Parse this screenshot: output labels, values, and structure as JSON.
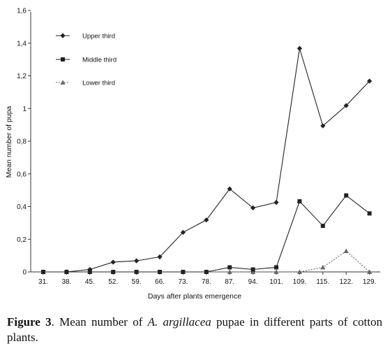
{
  "chart_data": {
    "type": "line",
    "categories": [
      "31.",
      "38.",
      "45.",
      "52.",
      "59.",
      "66.",
      "73.",
      "78.",
      "87.",
      "94.",
      "101.",
      "109.",
      "115.",
      "122.",
      "129."
    ],
    "series": [
      {
        "name": "Upper third",
        "marker": "diamond",
        "color": "#222222",
        "dashed": false,
        "values": [
          0,
          0,
          0.015,
          0.06,
          0.068,
          0.092,
          0.242,
          0.318,
          0.508,
          0.392,
          0.425,
          1.368,
          0.894,
          1.018,
          1.168
        ]
      },
      {
        "name": "Middle third",
        "marker": "square",
        "color": "#222222",
        "dashed": false,
        "values": [
          0,
          0,
          0,
          0,
          0,
          0,
          0,
          0,
          0.028,
          0.015,
          0.028,
          0.432,
          0.282,
          0.468,
          0.358
        ]
      },
      {
        "name": "Lower third",
        "marker": "triangle",
        "color": "#666666",
        "dashed": true,
        "values": [
          0,
          0,
          0,
          0,
          0,
          0,
          0,
          0,
          0,
          0,
          0,
          0,
          0.028,
          0.128,
          0
        ]
      }
    ],
    "y_ticks": [
      "0",
      "0,2",
      "0,4",
      "0,6",
      "0,8",
      "1",
      "1,2",
      "1,4",
      "1,6"
    ],
    "ylim": [
      0,
      1.6
    ],
    "xlabel": "Days after plants emergence",
    "ylabel": "Mean number of pupa",
    "legend_position": "top-left",
    "grid": false
  },
  "caption": {
    "figure_label": "Figure 3",
    "text_before": ". Mean number of ",
    "species": "A. argillacea",
    "text_after": " pupae in different parts of cotton plants."
  }
}
